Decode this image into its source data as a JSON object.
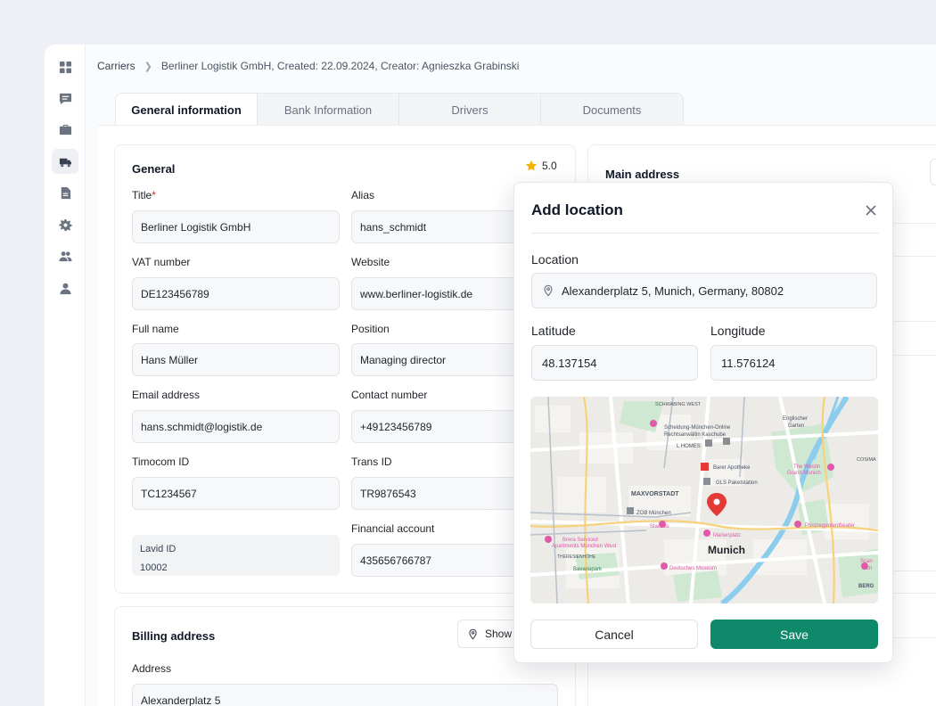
{
  "breadcrumb": {
    "root": "Carriers",
    "current": "Berliner Logistik GmbH, Created: 22.09.2024, Creator: Agnieszka Grabinski"
  },
  "tabs": [
    "General information",
    "Bank Information",
    "Drivers",
    "Documents"
  ],
  "sidebar": {
    "icons": [
      "dashboard-icon",
      "chat-icon",
      "briefcase-icon",
      "truck-icon",
      "document-icon",
      "settings-icon",
      "users-icon",
      "user-icon"
    ],
    "active": "truck-icon"
  },
  "general": {
    "title": "General",
    "rating": "5.0",
    "fields": {
      "title": {
        "label": "Title",
        "required_mark": "*",
        "value": "Berliner Logistik GmbH"
      },
      "alias": {
        "label": "Alias",
        "value": "hans_schmidt"
      },
      "vat": {
        "label": "VAT number",
        "value": "DE123456789"
      },
      "website": {
        "label": "Website",
        "value": "www.berliner-logistik.de"
      },
      "full_name": {
        "label": "Full name",
        "value": "Hans Müller"
      },
      "position": {
        "label": "Position",
        "value": "Managing director"
      },
      "email": {
        "label": "Email address",
        "value": "hans.schmidt@logistik.de"
      },
      "contact": {
        "label": "Contact number",
        "value": "+49123456789"
      },
      "timocom": {
        "label": "Timocom ID",
        "value": "TC1234567"
      },
      "trans": {
        "label": "Trans ID",
        "value": "TR9876543"
      },
      "lavid": {
        "label": "Lavid ID",
        "value": "10002"
      },
      "financial": {
        "label": "Financial account",
        "value": "435656766787"
      }
    }
  },
  "main_address": {
    "title": "Main address"
  },
  "billing": {
    "title": "Billing address",
    "show_label": "Show",
    "address_label": "Address",
    "address_value": "Alexanderplatz 5"
  },
  "modal": {
    "title": "Add location",
    "location_label": "Location",
    "location_value": "Alexanderplatz 5, Munich, Germany, 80802",
    "latitude_label": "Latitude",
    "latitude_value": "48.137154",
    "longitude_label": "Longitude",
    "longitude_value": "11.576124",
    "cancel_label": "Cancel",
    "save_label": "Save",
    "map": {
      "labels": {
        "schwabing": "SCHWABING WEST",
        "scheidung": "Scheidung-München-Online",
        "rechtsanwaeltin": "Rechtsanwältin Kaschube",
        "englischer": "Englischer",
        "garten": "Garten",
        "lhomes": "L HOMES",
        "apotheke": "Barer Apotheke",
        "westin": "The Westin",
        "grand": "Grand Munich",
        "cosima": "COSIMA",
        "gls": "GLS Paketstation",
        "maxvorstadt": "MAXVORSTADT",
        "zob": "ZOB München",
        "stachus": "Stachus",
        "prinzregent": "Prinzregententheater",
        "marienplatz": "Marienplatz",
        "brera": "Brera Serviced",
        "brera2": "Apartments München West",
        "munich": "Munich",
        "theresienhoehe": "THERESIENHÖHE",
        "bavariapark": "Bavariapark",
        "museum": "Deutsches Museum",
        "berg": "BERG",
        "scan": "Scan",
        "mch": "Mch"
      }
    }
  },
  "colors": {
    "accent": "#0e8a6a",
    "star": "#f5b400",
    "required": "#dc2626",
    "map_pin": "#e53935"
  }
}
